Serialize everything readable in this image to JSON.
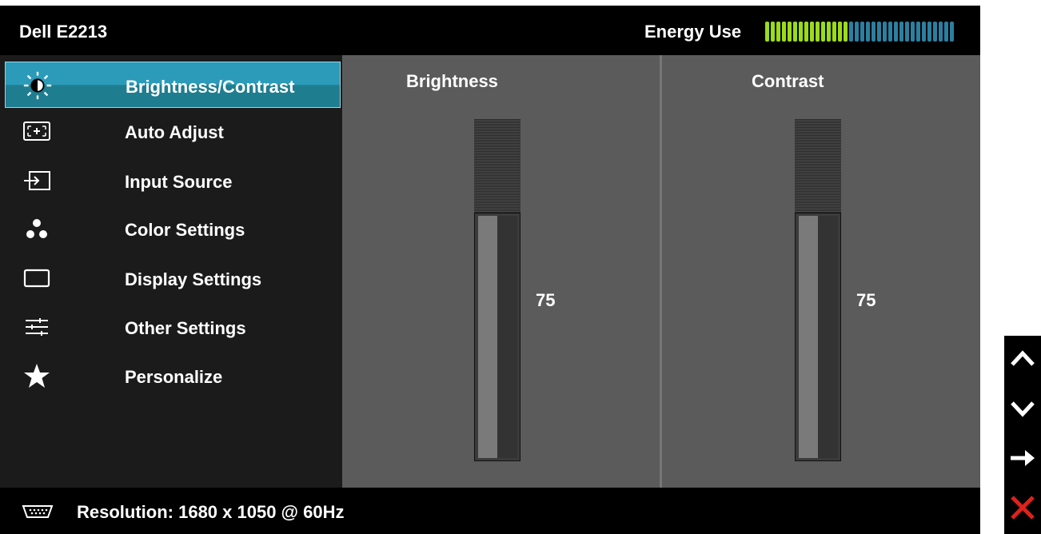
{
  "header": {
    "title": "Dell E2213",
    "energy_label": "Energy Use",
    "energy_level": 0.45
  },
  "menu": {
    "items": [
      {
        "label": "Brightness/Contrast",
        "icon": "brightness-icon",
        "selected": true
      },
      {
        "label": "Auto Adjust",
        "icon": "auto-adjust-icon"
      },
      {
        "label": "Input Source",
        "icon": "input-source-icon"
      },
      {
        "label": "Color Settings",
        "icon": "color-settings-icon"
      },
      {
        "label": "Display Settings",
        "icon": "display-settings-icon"
      },
      {
        "label": "Other Settings",
        "icon": "other-settings-icon"
      },
      {
        "label": "Personalize",
        "icon": "star-icon"
      }
    ]
  },
  "brightness": {
    "label": "Brightness",
    "value": "75"
  },
  "contrast": {
    "label": "Contrast",
    "value": "75"
  },
  "status": {
    "resolution": "Resolution: 1680 x 1050 @ 60Hz"
  },
  "nav": {
    "buttons": [
      "up-arrow-icon",
      "down-arrow-icon",
      "right-arrow-icon",
      "close-icon"
    ]
  },
  "colors": {
    "accent": "#2b9bb9",
    "energy_on": "#9bdb1a",
    "energy_off": "#2c7fa0",
    "exit": "#e0201b"
  }
}
